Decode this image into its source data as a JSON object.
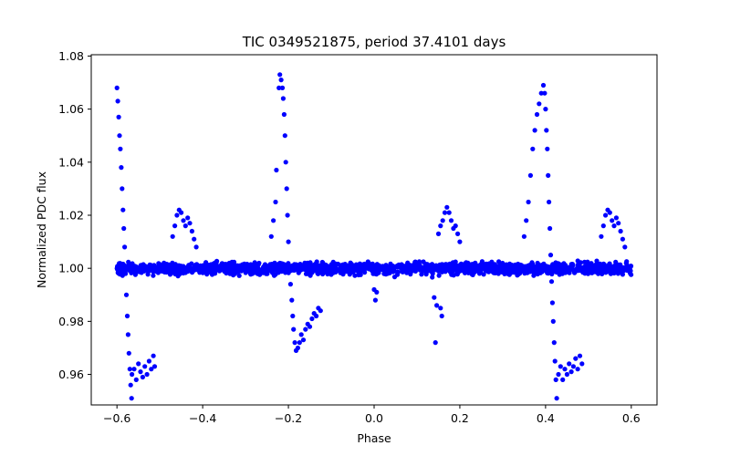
{
  "chart_data": {
    "type": "scatter",
    "title": "TIC 0349521875, period 37.4101 days",
    "xlabel": "Phase",
    "ylabel": "Normalized PDC flux",
    "xlim": [
      -0.66,
      0.66
    ],
    "ylim": [
      0.9485,
      1.0805
    ],
    "xticks": [
      -0.6,
      -0.4,
      -0.2,
      0.0,
      0.2,
      0.4,
      0.6
    ],
    "xtick_labels": [
      "−0.6",
      "−0.4",
      "−0.2",
      "0.0",
      "0.2",
      "0.4",
      "0.6"
    ],
    "yticks": [
      0.96,
      0.98,
      1.0,
      1.02,
      1.04,
      1.06,
      1.08
    ],
    "ytick_labels": [
      "0.96",
      "0.98",
      "1.00",
      "1.02",
      "1.04",
      "1.06",
      "1.08"
    ],
    "marker_color": "#0000ff",
    "series": [
      {
        "name": "PDC flux",
        "baseline": {
          "x_range": [
            -0.6,
            0.6
          ],
          "center": 1.0,
          "spread": 0.0045
        },
        "points": [
          [
            -0.6,
            1.068
          ],
          [
            -0.598,
            1.063
          ],
          [
            -0.596,
            1.057
          ],
          [
            -0.594,
            1.05
          ],
          [
            -0.592,
            1.045
          ],
          [
            -0.59,
            1.038
          ],
          [
            -0.588,
            1.03
          ],
          [
            -0.586,
            1.022
          ],
          [
            -0.584,
            1.015
          ],
          [
            -0.582,
            1.008
          ],
          [
            -0.58,
            0.998
          ],
          [
            -0.578,
            0.99
          ],
          [
            -0.576,
            0.982
          ],
          [
            -0.574,
            0.975
          ],
          [
            -0.572,
            0.968
          ],
          [
            -0.57,
            0.962
          ],
          [
            -0.568,
            0.956
          ],
          [
            -0.566,
            0.951
          ],
          [
            -0.565,
            0.96
          ],
          [
            -0.56,
            0.962
          ],
          [
            -0.555,
            0.958
          ],
          [
            -0.55,
            0.964
          ],
          [
            -0.545,
            0.961
          ],
          [
            -0.54,
            0.959
          ],
          [
            -0.535,
            0.963
          ],
          [
            -0.53,
            0.96
          ],
          [
            -0.525,
            0.965
          ],
          [
            -0.52,
            0.962
          ],
          [
            -0.515,
            0.967
          ],
          [
            -0.512,
            0.963
          ],
          [
            -0.47,
            1.012
          ],
          [
            -0.465,
            1.016
          ],
          [
            -0.46,
            1.02
          ],
          [
            -0.455,
            1.022
          ],
          [
            -0.45,
            1.021
          ],
          [
            -0.445,
            1.018
          ],
          [
            -0.44,
            1.016
          ],
          [
            -0.435,
            1.019
          ],
          [
            -0.43,
            1.017
          ],
          [
            -0.425,
            1.014
          ],
          [
            -0.42,
            1.011
          ],
          [
            -0.415,
            1.008
          ],
          [
            -0.24,
            1.012
          ],
          [
            -0.235,
            1.018
          ],
          [
            -0.23,
            1.025
          ],
          [
            -0.228,
            1.037
          ],
          [
            -0.222,
            1.068
          ],
          [
            -0.22,
            1.073
          ],
          [
            -0.217,
            1.071
          ],
          [
            -0.214,
            1.068
          ],
          [
            -0.212,
            1.064
          ],
          [
            -0.21,
            1.058
          ],
          [
            -0.208,
            1.05
          ],
          [
            -0.206,
            1.04
          ],
          [
            -0.204,
            1.03
          ],
          [
            -0.202,
            1.02
          ],
          [
            -0.2,
            1.01
          ],
          [
            -0.195,
            0.994
          ],
          [
            -0.192,
            0.988
          ],
          [
            -0.19,
            0.982
          ],
          [
            -0.188,
            0.977
          ],
          [
            -0.185,
            0.972
          ],
          [
            -0.182,
            0.969
          ],
          [
            -0.178,
            0.97
          ],
          [
            -0.174,
            0.972
          ],
          [
            -0.17,
            0.975
          ],
          [
            -0.165,
            0.973
          ],
          [
            -0.16,
            0.977
          ],
          [
            -0.155,
            0.979
          ],
          [
            -0.15,
            0.978
          ],
          [
            -0.145,
            0.981
          ],
          [
            -0.14,
            0.983
          ],
          [
            -0.135,
            0.982
          ],
          [
            -0.13,
            0.985
          ],
          [
            -0.125,
            0.984
          ],
          [
            0.0,
            0.992
          ],
          [
            0.003,
            0.988
          ],
          [
            0.006,
            0.991
          ],
          [
            0.14,
            0.989
          ],
          [
            0.143,
            0.972
          ],
          [
            0.146,
            0.986
          ],
          [
            0.155,
            0.985
          ],
          [
            0.158,
            0.982
          ],
          [
            0.15,
            1.013
          ],
          [
            0.155,
            1.016
          ],
          [
            0.16,
            1.018
          ],
          [
            0.165,
            1.021
          ],
          [
            0.17,
            1.023
          ],
          [
            0.175,
            1.021
          ],
          [
            0.18,
            1.018
          ],
          [
            0.185,
            1.015
          ],
          [
            0.19,
            1.016
          ],
          [
            0.195,
            1.013
          ],
          [
            0.2,
            1.01
          ],
          [
            0.35,
            1.012
          ],
          [
            0.355,
            1.018
          ],
          [
            0.36,
            1.025
          ],
          [
            0.365,
            1.035
          ],
          [
            0.37,
            1.045
          ],
          [
            0.375,
            1.052
          ],
          [
            0.38,
            1.058
          ],
          [
            0.385,
            1.062
          ],
          [
            0.39,
            1.066
          ],
          [
            0.395,
            1.069
          ],
          [
            0.398,
            1.066
          ],
          [
            0.4,
            1.06
          ],
          [
            0.402,
            1.052
          ],
          [
            0.404,
            1.045
          ],
          [
            0.406,
            1.035
          ],
          [
            0.408,
            1.025
          ],
          [
            0.41,
            1.015
          ],
          [
            0.412,
            1.005
          ],
          [
            0.414,
            0.995
          ],
          [
            0.416,
            0.987
          ],
          [
            0.418,
            0.98
          ],
          [
            0.42,
            0.972
          ],
          [
            0.422,
            0.965
          ],
          [
            0.424,
            0.958
          ],
          [
            0.426,
            0.951
          ],
          [
            0.43,
            0.96
          ],
          [
            0.435,
            0.963
          ],
          [
            0.44,
            0.958
          ],
          [
            0.445,
            0.962
          ],
          [
            0.45,
            0.96
          ],
          [
            0.455,
            0.964
          ],
          [
            0.46,
            0.961
          ],
          [
            0.465,
            0.963
          ],
          [
            0.47,
            0.966
          ],
          [
            0.475,
            0.962
          ],
          [
            0.48,
            0.967
          ],
          [
            0.485,
            0.964
          ],
          [
            0.53,
            1.012
          ],
          [
            0.535,
            1.016
          ],
          [
            0.54,
            1.02
          ],
          [
            0.545,
            1.022
          ],
          [
            0.55,
            1.021
          ],
          [
            0.555,
            1.018
          ],
          [
            0.56,
            1.016
          ],
          [
            0.565,
            1.019
          ],
          [
            0.57,
            1.017
          ],
          [
            0.575,
            1.014
          ],
          [
            0.58,
            1.011
          ],
          [
            0.585,
            1.008
          ]
        ]
      }
    ]
  }
}
